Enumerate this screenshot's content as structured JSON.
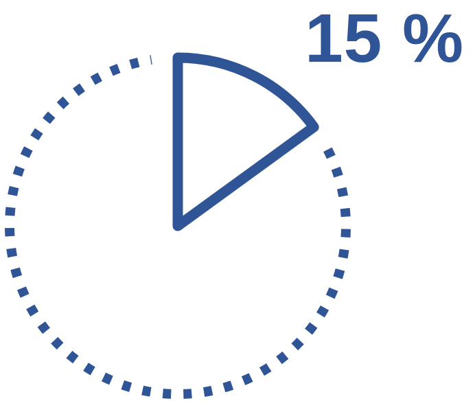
{
  "chart_data": {
    "type": "pie",
    "values": [
      15,
      85
    ],
    "slices": [
      {
        "value": 15,
        "style": "highlighted-outline"
      },
      {
        "value": 85,
        "style": "dotted-outline"
      }
    ],
    "data_label": "15 %"
  },
  "colors": {
    "accent": "#2f5597"
  }
}
